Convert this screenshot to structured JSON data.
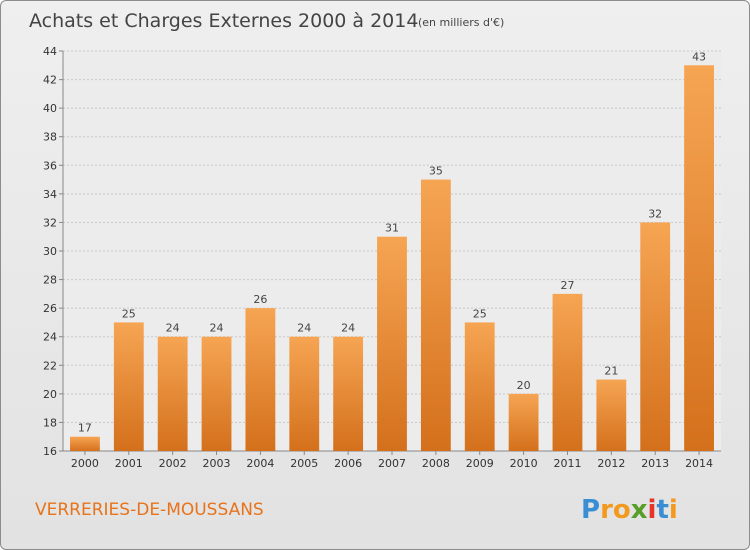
{
  "page": {
    "title": "Achats et Charges Externes 2000 à 2014",
    "unit": "(en milliers d'€)",
    "commune": "VERRERIES-DE-MOUSSANS",
    "brand": {
      "letters": [
        "P",
        "r",
        "o",
        "x",
        "i",
        "t",
        "i"
      ],
      "colors": [
        "#3a8fd4",
        "#f39a1e",
        "#f39a1e",
        "#5a9e2a",
        "#e8342a",
        "#3a8fd4",
        "#f39a1e"
      ]
    }
  },
  "chart_data": {
    "type": "bar",
    "categories": [
      "2000",
      "2001",
      "2002",
      "2003",
      "2004",
      "2005",
      "2006",
      "2007",
      "2008",
      "2009",
      "2010",
      "2011",
      "2012",
      "2013",
      "2014"
    ],
    "values": [
      17,
      25,
      24,
      24,
      26,
      24,
      24,
      31,
      35,
      25,
      20,
      27,
      21,
      32,
      43
    ],
    "ylim": [
      16,
      44
    ],
    "yticks": [
      16,
      18,
      20,
      22,
      24,
      26,
      28,
      30,
      32,
      34,
      36,
      38,
      40,
      42,
      44
    ],
    "grid": true,
    "bar_color": "#f0922f"
  }
}
